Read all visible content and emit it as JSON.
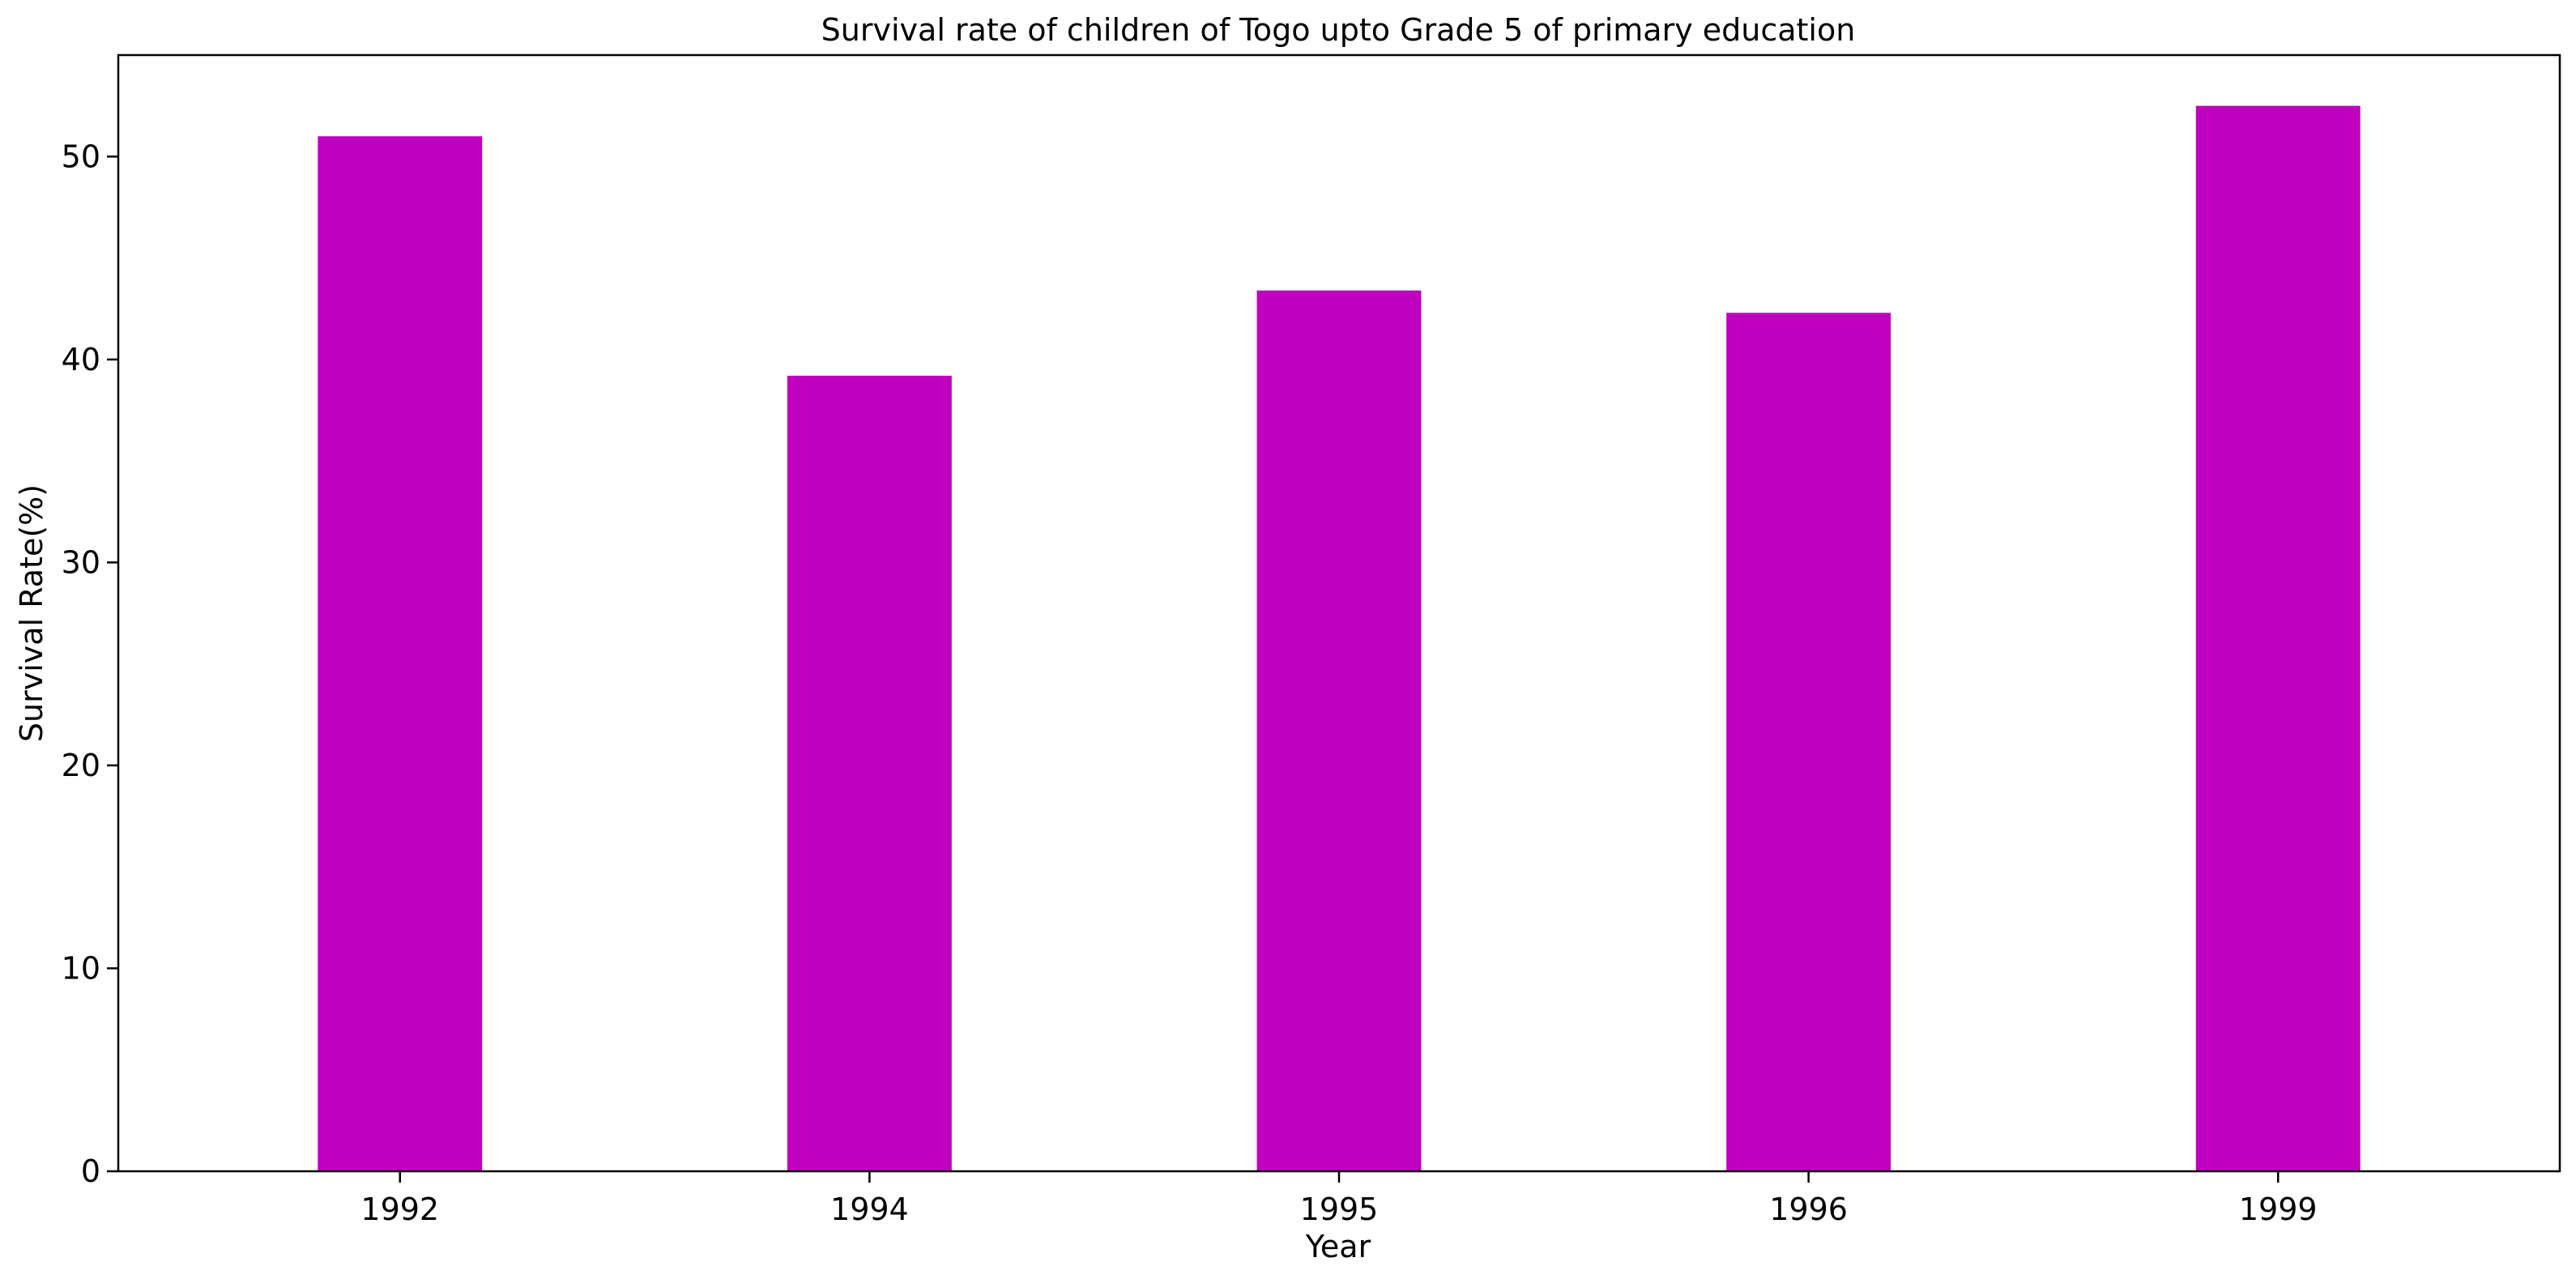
{
  "chart_data": {
    "type": "bar",
    "title": "Survival rate of children of Togo upto Grade 5 of primary education",
    "xlabel": "Year",
    "ylabel": "Survival Rate(%)",
    "categories": [
      "1992",
      "1994",
      "1995",
      "1996",
      "1999"
    ],
    "values": [
      51.0,
      39.2,
      43.4,
      42.3,
      52.5
    ],
    "ylim": [
      0,
      55
    ],
    "yticks": [
      0,
      10,
      20,
      30,
      40,
      50
    ],
    "bar_color": "#bf00bf",
    "grid": false,
    "legend": "none"
  }
}
